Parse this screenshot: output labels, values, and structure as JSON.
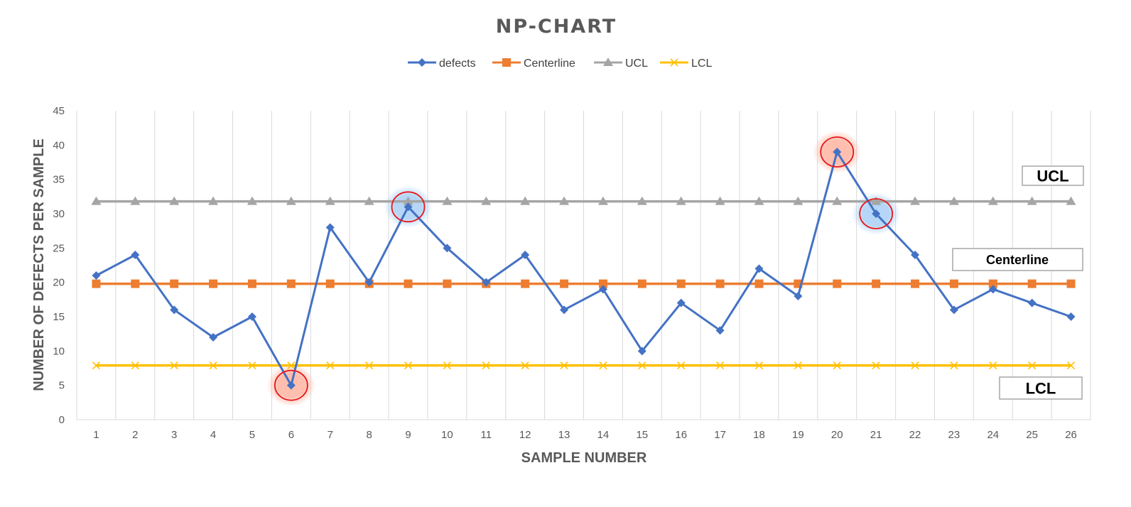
{
  "chart_data": {
    "type": "line",
    "title": "NP-CHART",
    "xlabel": "SAMPLE NUMBER",
    "ylabel": "NUMBER OF DEFECTS PER SAMPLE",
    "x": [
      1,
      2,
      3,
      4,
      5,
      6,
      7,
      8,
      9,
      10,
      11,
      12,
      13,
      14,
      15,
      16,
      17,
      18,
      19,
      20,
      21,
      22,
      23,
      24,
      25,
      26
    ],
    "ylim": [
      0,
      45
    ],
    "yticks": [
      0,
      5,
      10,
      15,
      20,
      25,
      30,
      35,
      40,
      45
    ],
    "grid": "vertical",
    "legend_position": "top-center",
    "series": [
      {
        "name": "defects",
        "color": "#4472c4",
        "marker": "diamond",
        "values": [
          21,
          24,
          16,
          12,
          15,
          5,
          28,
          20,
          31,
          25,
          20,
          24,
          16,
          19,
          10,
          17,
          13,
          22,
          18,
          39,
          30,
          24,
          16,
          19,
          17,
          15
        ]
      },
      {
        "name": "Centerline",
        "color": "#ed7d31",
        "marker": "square",
        "values": [
          19.8,
          19.8,
          19.8,
          19.8,
          19.8,
          19.8,
          19.8,
          19.8,
          19.8,
          19.8,
          19.8,
          19.8,
          19.8,
          19.8,
          19.8,
          19.8,
          19.8,
          19.8,
          19.8,
          19.8,
          19.8,
          19.8,
          19.8,
          19.8,
          19.8,
          19.8
        ]
      },
      {
        "name": "UCL",
        "color": "#a5a5a5",
        "marker": "triangle",
        "values": [
          31.8,
          31.8,
          31.8,
          31.8,
          31.8,
          31.8,
          31.8,
          31.8,
          31.8,
          31.8,
          31.8,
          31.8,
          31.8,
          31.8,
          31.8,
          31.8,
          31.8,
          31.8,
          31.8,
          31.8,
          31.8,
          31.8,
          31.8,
          31.8,
          31.8,
          31.8
        ]
      },
      {
        "name": "LCL",
        "color": "#ffc000",
        "marker": "x",
        "values": [
          7.9,
          7.9,
          7.9,
          7.9,
          7.9,
          7.9,
          7.9,
          7.9,
          7.9,
          7.9,
          7.9,
          7.9,
          7.9,
          7.9,
          7.9,
          7.9,
          7.9,
          7.9,
          7.9,
          7.9,
          7.9,
          7.9,
          7.9,
          7.9,
          7.9,
          7.9
        ]
      }
    ],
    "highlights": [
      {
        "x": 6,
        "y": 5,
        "color": "red"
      },
      {
        "x": 9,
        "y": 31,
        "color": "blue"
      },
      {
        "x": 20,
        "y": 39,
        "color": "red"
      },
      {
        "x": 21,
        "y": 30,
        "color": "blue"
      }
    ],
    "annotations": [
      {
        "text": "UCL",
        "near_series": "UCL"
      },
      {
        "text": "Centerline",
        "near_series": "Centerline"
      },
      {
        "text": "LCL",
        "near_series": "LCL"
      }
    ]
  }
}
